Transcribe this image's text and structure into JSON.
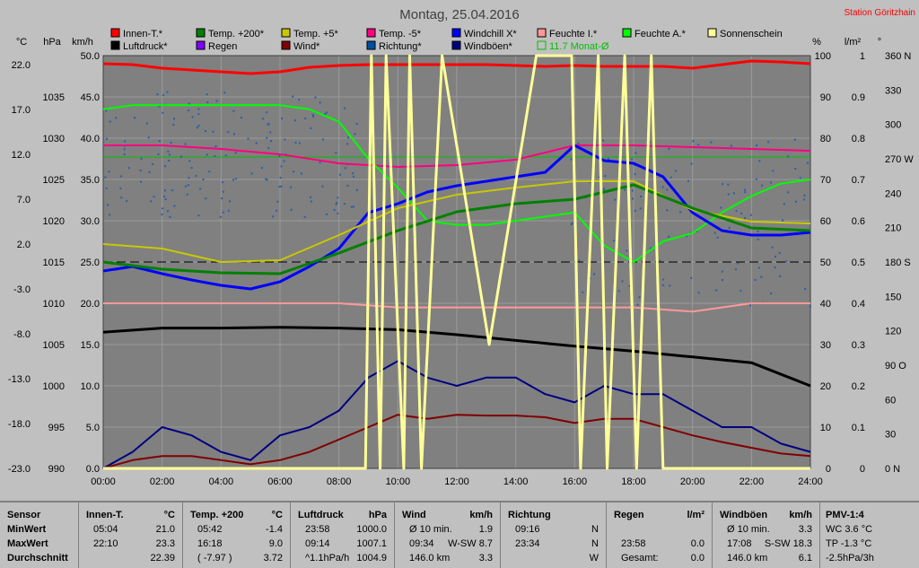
{
  "header": {
    "title": "Montag, 25.04.2016",
    "station": "Station Göritzhain"
  },
  "legend": [
    {
      "label": "Innen-T.*",
      "color": "#ff0000"
    },
    {
      "label": "Luftdruck*",
      "color": "#000000"
    },
    {
      "label": "Temp. +200*",
      "color": "#008000"
    },
    {
      "label": "Regen",
      "color": "#8000ff"
    },
    {
      "label": "Temp. +5*",
      "color": "#c8c800"
    },
    {
      "label": "Wind*",
      "color": "#800000"
    },
    {
      "label": "Temp. -5*",
      "color": "#ff0080"
    },
    {
      "label": "Richtung*",
      "color": "#0050a0"
    },
    {
      "label": "Windchill X*",
      "color": "#0000ff"
    },
    {
      "label": "Windböen*",
      "color": "#000080"
    },
    {
      "label": "Feuchte I.*",
      "color": "#ff9999"
    },
    {
      "label": "11.7 Monat-Ø",
      "color": "#00c000",
      "hollow": true
    },
    {
      "label": "Feuchte A.*",
      "color": "#00ff00"
    },
    {
      "label": "Sonnenschein",
      "color": "#ffff99"
    }
  ],
  "axes": {
    "units": [
      "°C",
      "hPa",
      "km/h",
      "%",
      "l/m²",
      "°"
    ],
    "temp_ticks": [
      "22.0",
      "17.0",
      "12.0",
      "7.0",
      "2.0",
      "-3.0",
      "-8.0",
      "-13.0",
      "-18.0",
      "-23.0"
    ],
    "hpa_ticks": [
      "1035",
      "1030",
      "1025",
      "1020",
      "1015",
      "1010",
      "1005",
      "1000",
      "995",
      "990"
    ],
    "kmh_ticks": [
      "50.0",
      "45.0",
      "40.0",
      "35.0",
      "30.0",
      "25.0",
      "20.0",
      "15.0",
      "10.0",
      "5.0",
      "0.0"
    ],
    "pct_ticks": [
      "100",
      "90",
      "80",
      "70",
      "60",
      "50",
      "40",
      "30",
      "20",
      "10",
      "0"
    ],
    "rain_ticks": [
      "1",
      "0.9",
      "0.8",
      "0.7",
      "0.6",
      "0.5",
      "0.4",
      "0.3",
      "0.2",
      "0.1",
      "0"
    ],
    "deg_ticks": [
      "360 N",
      "330",
      "300",
      "270 W",
      "240",
      "210",
      "180 S",
      "150",
      "120",
      "90 O",
      "60",
      "30",
      "0  N"
    ],
    "time_ticks": [
      "00:00",
      "02:00",
      "04:00",
      "06:00",
      "08:00",
      "10:00",
      "12:00",
      "14:00",
      "16:00",
      "18:00",
      "20:00",
      "22:00",
      "24:00"
    ]
  },
  "colors": {
    "plot_bg": "#808080",
    "grid": "#9a9a9a",
    "panel": "#c0c0c0"
  },
  "chart_data": {
    "type": "line",
    "title": "Montag, 25.04.2016",
    "x_range": [
      "00:00",
      "24:00"
    ],
    "ylim_kmh": [
      0,
      50
    ],
    "ylim_temp": [
      -23,
      23
    ],
    "ylim_hpa": [
      990,
      1040
    ],
    "ylim_pct": [
      0,
      100
    ],
    "grid": true,
    "series": [
      {
        "name": "Innen-T.*",
        "unit": "°C",
        "x": [
          0,
          1,
          2,
          3,
          4,
          5,
          6,
          7,
          8,
          9,
          10,
          11,
          12,
          13,
          14,
          15,
          16,
          17,
          18,
          19,
          20,
          21,
          22,
          23,
          24
        ],
        "y": [
          22.1,
          22.0,
          21.6,
          21.4,
          21.2,
          21.0,
          21.2,
          21.7,
          21.9,
          22.0,
          22.0,
          22.0,
          22.0,
          22.0,
          21.9,
          21.8,
          21.9,
          21.8,
          21.8,
          21.8,
          21.6,
          22.0,
          22.4,
          22.3,
          22.1
        ]
      },
      {
        "name": "Temp. -5*",
        "unit": "°C",
        "x": [
          0,
          2,
          4,
          6,
          8,
          10,
          12,
          14,
          16,
          18,
          20,
          22,
          24
        ],
        "y": [
          13.0,
          13.0,
          12.6,
          12.0,
          11.0,
          10.6,
          10.8,
          11.4,
          13.0,
          13.0,
          12.8,
          12.6,
          12.4
        ]
      },
      {
        "name": "Feuchte A.*",
        "unit": "%",
        "x": [
          0,
          1,
          2,
          3,
          4,
          5,
          6,
          7,
          8,
          9,
          10,
          11,
          12,
          13,
          14,
          15,
          16,
          17,
          18,
          19,
          20,
          21,
          22,
          23,
          24
        ],
        "y": [
          87,
          88,
          88,
          88,
          88,
          88,
          88,
          87,
          84,
          75,
          68,
          60,
          59,
          59,
          60,
          61,
          62,
          54,
          50,
          55,
          57,
          62,
          66,
          69,
          70
        ]
      },
      {
        "name": "Windchill X*",
        "unit": "°C",
        "x": [
          0,
          1,
          2,
          3,
          4,
          5,
          6,
          7,
          8,
          9,
          10,
          11,
          12,
          13,
          14,
          15,
          16,
          17,
          18,
          19,
          20,
          21,
          22,
          23,
          24
        ],
        "y": [
          -1.0,
          -0.5,
          -1.3,
          -2.0,
          -2.6,
          -3.0,
          -2.2,
          -0.5,
          1.5,
          5.5,
          6.5,
          7.8,
          8.5,
          9.0,
          9.5,
          10.0,
          13.0,
          11.3,
          11.0,
          9.5,
          5.5,
          3.5,
          3.0,
          3.0,
          3.3
        ]
      },
      {
        "name": "Temp. +5*",
        "unit": "°C",
        "x": [
          0,
          2,
          4,
          6,
          8,
          10,
          12,
          14,
          16,
          18,
          20,
          22,
          24
        ],
        "y": [
          2.0,
          1.5,
          0.0,
          0.2,
          3.0,
          6.0,
          7.5,
          8.3,
          9.0,
          9.0,
          5.8,
          4.5,
          4.3
        ]
      },
      {
        "name": "Temp. +200*",
        "unit": "°C",
        "x": [
          0,
          2,
          4,
          6,
          8,
          10,
          12,
          14,
          16,
          18,
          20,
          22,
          24
        ],
        "y": [
          0.0,
          -0.8,
          -1.2,
          -1.3,
          1.0,
          3.5,
          5.6,
          6.5,
          7.0,
          8.6,
          6.0,
          3.8,
          3.5
        ]
      },
      {
        "name": "Luftdruck*",
        "unit": "hPa",
        "x": [
          0,
          2,
          4,
          6,
          8,
          10,
          12,
          14,
          16,
          18,
          20,
          22,
          24
        ],
        "y": [
          1006.5,
          1007.0,
          1007.0,
          1007.1,
          1007.0,
          1006.8,
          1006.2,
          1005.5,
          1004.8,
          1004.2,
          1003.5,
          1002.8,
          1000.0
        ]
      },
      {
        "name": "Feuchte I.*",
        "unit": "%",
        "x": [
          0,
          2,
          4,
          6,
          8,
          10,
          12,
          14,
          16,
          18,
          20,
          22,
          24
        ],
        "y": [
          40,
          40,
          40,
          40,
          40,
          39,
          39,
          39,
          39,
          39,
          38,
          40,
          40
        ]
      },
      {
        "name": "Windböen*",
        "unit": "km/h",
        "x": [
          0,
          1,
          2,
          3,
          4,
          5,
          6,
          7,
          8,
          9,
          10,
          11,
          12,
          13,
          14,
          15,
          16,
          17,
          18,
          19,
          20,
          21,
          22,
          23,
          24
        ],
        "y": [
          0,
          2,
          5,
          4,
          2,
          1,
          4,
          5,
          7,
          11,
          13,
          11,
          10,
          11,
          11,
          9,
          8,
          10,
          9,
          9,
          7,
          5,
          5,
          3,
          2
        ]
      },
      {
        "name": "Wind*",
        "unit": "km/h",
        "x": [
          0,
          1,
          2,
          3,
          4,
          5,
          6,
          7,
          8,
          9,
          10,
          11,
          12,
          13,
          14,
          15,
          16,
          17,
          18,
          19,
          20,
          21,
          22,
          23,
          24
        ],
        "y": [
          0,
          1,
          1.5,
          1.5,
          1,
          0.5,
          1,
          2,
          3.5,
          5,
          6.5,
          6,
          6.5,
          6.4,
          6.4,
          6.2,
          5.5,
          6,
          6,
          5,
          4,
          3.2,
          2.5,
          1.8,
          1.5
        ]
      },
      {
        "name": "Sonnenschein",
        "unit": "%",
        "x": [
          0,
          8.9,
          9.1,
          9.4,
          9.6,
          10.2,
          10.4,
          10.8,
          11.5,
          13.1,
          14.7,
          15.9,
          16.2,
          16.8,
          17.1,
          17.7,
          18.1,
          18.6,
          19.0,
          19.6,
          24
        ],
        "y": [
          0,
          0,
          100,
          0,
          100,
          0,
          100,
          0,
          100,
          30,
          100,
          100,
          0,
          100,
          0,
          100,
          0,
          100,
          0,
          0,
          0
        ]
      }
    ],
    "reference_lines": [
      {
        "name": "11.7 Monat-Ø",
        "unit": "°C",
        "value": 11.7
      }
    ]
  },
  "stats": {
    "sensor": {
      "head": "Sensor",
      "rows": [
        "MinWert",
        "MaxWert",
        "Durchschnitt"
      ]
    },
    "innen": {
      "head": "Innen-T.",
      "unit": "°C",
      "rows": [
        [
          "05:04",
          "21.0"
        ],
        [
          "22:10",
          "23.3"
        ],
        [
          "",
          "22.39"
        ]
      ]
    },
    "temp": {
      "head": "Temp. +200",
      "unit": "°C",
      "rows": [
        [
          "05:42",
          "-1.4"
        ],
        [
          "16:18",
          "9.0"
        ],
        [
          "( -7.97 )",
          "3.72"
        ]
      ]
    },
    "druck": {
      "head": "Luftdruck",
      "unit": "hPa",
      "rows": [
        [
          "23:58",
          "1000.0"
        ],
        [
          "09:14",
          "1007.1"
        ],
        [
          "^1.1hPa/h",
          "1004.9"
        ]
      ]
    },
    "wind": {
      "head": "Wind",
      "unit": "km/h",
      "rows": [
        [
          "Ø 10 min.",
          "1.9"
        ],
        [
          "09:34",
          "W-SW 8.7"
        ],
        [
          "146.0 km",
          "3.3"
        ]
      ]
    },
    "richtung": {
      "head": "Richtung",
      "rows": [
        [
          "09:16",
          "N"
        ],
        [
          "23:34",
          "N"
        ],
        [
          "",
          "W"
        ]
      ]
    },
    "regen": {
      "head": "Regen",
      "unit": "l/m²",
      "rows": [
        [
          "",
          ""
        ],
        [
          "23:58",
          "0.0"
        ],
        [
          "Gesamt:",
          "0.0"
        ]
      ]
    },
    "boeen": {
      "head": "Windböen",
      "unit": "km/h",
      "rows": [
        [
          "Ø 10 min.",
          "3.3"
        ],
        [
          "17:08",
          "S-SW 18.3"
        ],
        [
          "146.0 km",
          "6.1"
        ]
      ]
    },
    "pmv": {
      "head": "PMV-1:4",
      "rows": [
        "WC 3.6 °C",
        "TP -1.3 °C",
        "-2.5hPa/3h"
      ]
    }
  }
}
